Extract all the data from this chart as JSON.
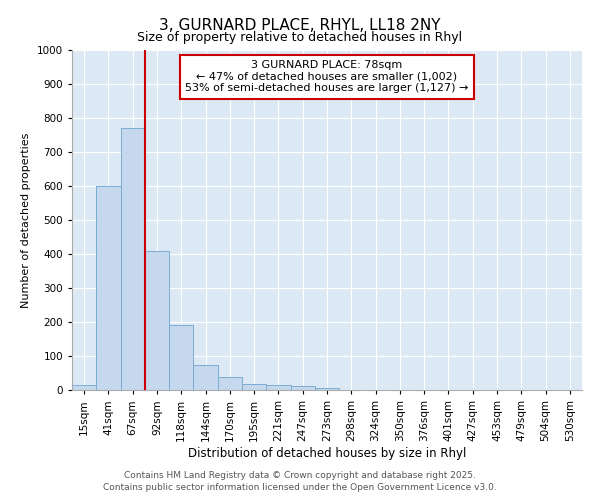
{
  "title": "3, GURNARD PLACE, RHYL, LL18 2NY",
  "subtitle": "Size of property relative to detached houses in Rhyl",
  "xlabel": "Distribution of detached houses by size in Rhyl",
  "ylabel": "Number of detached properties",
  "categories": [
    "15sqm",
    "41sqm",
    "67sqm",
    "92sqm",
    "118sqm",
    "144sqm",
    "170sqm",
    "195sqm",
    "221sqm",
    "247sqm",
    "273sqm",
    "298sqm",
    "324sqm",
    "350sqm",
    "376sqm",
    "401sqm",
    "427sqm",
    "453sqm",
    "479sqm",
    "504sqm",
    "530sqm"
  ],
  "values": [
    15,
    600,
    770,
    410,
    192,
    75,
    37,
    18,
    14,
    13,
    5,
    0,
    0,
    0,
    0,
    0,
    0,
    0,
    0,
    0,
    0
  ],
  "bar_color": "#c5d8ed",
  "bar_edge_color": "#7aadd4",
  "vline_color": "#cc0000",
  "annotation_title": "3 GURNARD PLACE: 78sqm",
  "annotation_line1": "← 47% of detached houses are smaller (1,002)",
  "annotation_line2": "53% of semi-detached houses are larger (1,127) →",
  "annotation_box_edgecolor": "#cc0000",
  "annotation_box_facecolor": "#ffffff",
  "ylim": [
    0,
    1000
  ],
  "yticks": [
    0,
    100,
    200,
    300,
    400,
    500,
    600,
    700,
    800,
    900,
    1000
  ],
  "footer1": "Contains HM Land Registry data © Crown copyright and database right 2025.",
  "footer2": "Contains public sector information licensed under the Open Government Licence v3.0.",
  "plot_bg_color": "#dce9f5",
  "fig_bg_color": "#ffffff",
  "grid_color": "#ffffff",
  "title_fontsize": 11,
  "subtitle_fontsize": 9,
  "xlabel_fontsize": 8.5,
  "ylabel_fontsize": 8,
  "tick_fontsize": 7.5,
  "footer_fontsize": 6.5,
  "annot_fontsize": 8
}
